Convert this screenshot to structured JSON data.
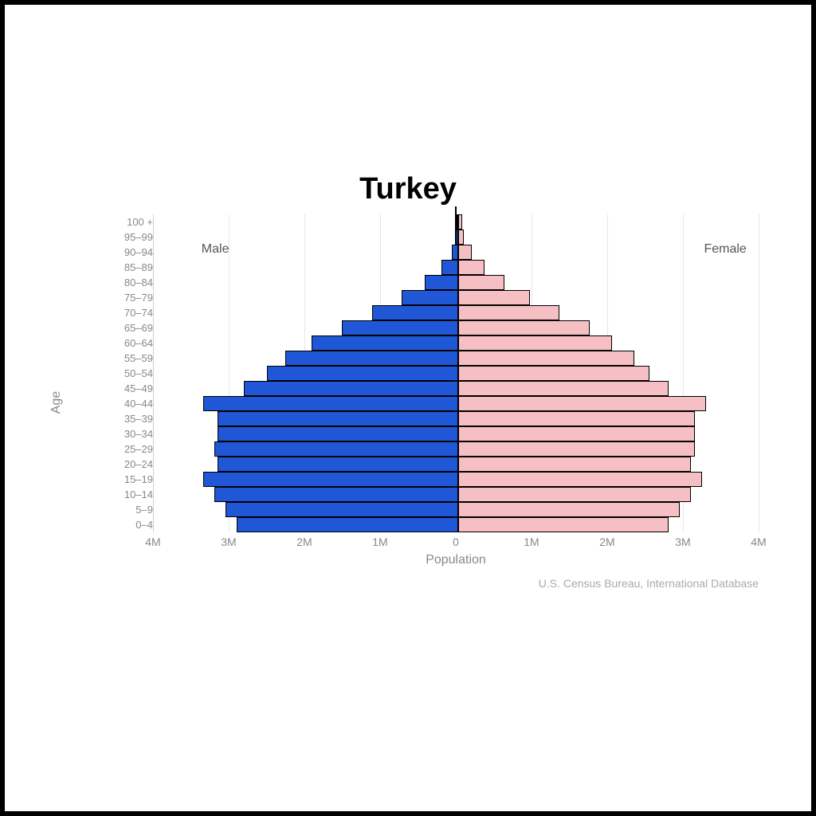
{
  "title": "Turkey",
  "y_axis_label": "Age",
  "x_axis_label": "Population",
  "left_series_label": "Male",
  "right_series_label": "Female",
  "source": "U.S. Census Bureau, International Database",
  "chart": {
    "type": "population-pyramid",
    "male_color": "#1f57d6",
    "female_color": "#f5bfc3",
    "bar_border_color": "#000000",
    "background_color": "#ffffff",
    "grid_color": "#e6e6e6",
    "label_color": "#888888",
    "title_color": "#000000",
    "title_fontsize": 38,
    "label_fontsize": 16,
    "tick_fontsize": 14,
    "age_label_fontsize": 13,
    "x_max": 4,
    "x_ticks": [
      4,
      3,
      2,
      1,
      0,
      1,
      2,
      3,
      4
    ],
    "x_tick_labels": [
      "4M",
      "3M",
      "2M",
      "1M",
      "0",
      "1M",
      "2M",
      "3M",
      "4M"
    ],
    "age_groups": [
      {
        "label": "100 +",
        "male": 0.02,
        "female": 0.05
      },
      {
        "label": "95–99",
        "male": 0.03,
        "female": 0.07
      },
      {
        "label": "90–94",
        "male": 0.08,
        "female": 0.18
      },
      {
        "label": "85–89",
        "male": 0.22,
        "female": 0.35
      },
      {
        "label": "80–84",
        "male": 0.45,
        "female": 0.62
      },
      {
        "label": "75–79",
        "male": 0.75,
        "female": 0.95
      },
      {
        "label": "70–74",
        "male": 1.15,
        "female": 1.35
      },
      {
        "label": "65–69",
        "male": 1.55,
        "female": 1.75
      },
      {
        "label": "60–64",
        "male": 1.95,
        "female": 2.05
      },
      {
        "label": "55–59",
        "male": 2.3,
        "female": 2.35
      },
      {
        "label": "50–54",
        "male": 2.55,
        "female": 2.55
      },
      {
        "label": "45–49",
        "male": 2.85,
        "female": 2.8
      },
      {
        "label": "40–44",
        "male": 3.4,
        "female": 3.3
      },
      {
        "label": "35–39",
        "male": 3.2,
        "female": 3.15
      },
      {
        "label": "30–34",
        "male": 3.2,
        "female": 3.15
      },
      {
        "label": "25–29",
        "male": 3.25,
        "female": 3.15
      },
      {
        "label": "20–24",
        "male": 3.2,
        "female": 3.1
      },
      {
        "label": "15–19",
        "male": 3.4,
        "female": 3.25
      },
      {
        "label": "10–14",
        "male": 3.25,
        "female": 3.1
      },
      {
        "label": "5–9",
        "male": 3.1,
        "female": 2.95
      },
      {
        "label": "0–4",
        "male": 2.95,
        "female": 2.8
      }
    ]
  }
}
